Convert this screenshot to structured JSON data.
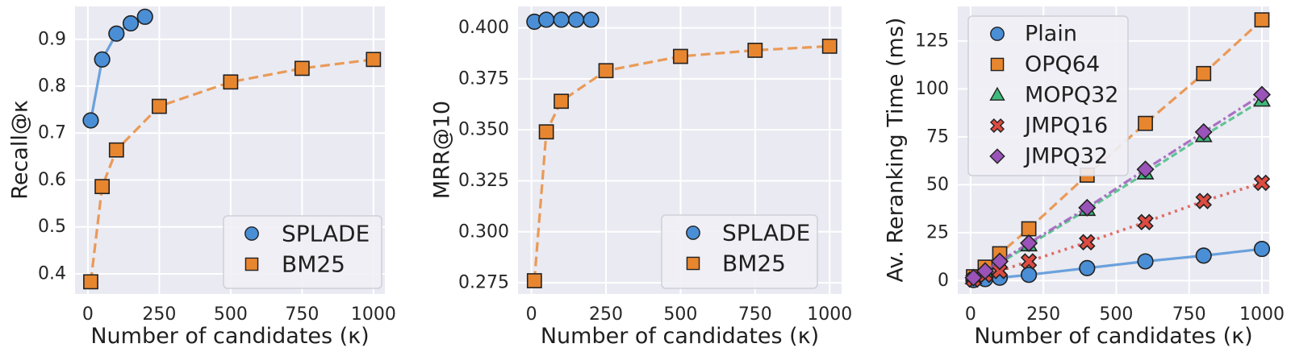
{
  "figure": {
    "background": "#ffffff",
    "plot_background": "#eaeaf2",
    "grid_color": "#ffffff",
    "text_color": "#262626",
    "marker_edge_color": "#222222",
    "legend_background": "#f0f0f5",
    "legend_border": "#cfcfda"
  },
  "chart_data": [
    {
      "type": "line",
      "title": "",
      "xlabel": "Number of candidates (κ)",
      "ylabel": "Recall@κ",
      "xlim": [
        -45,
        1040
      ],
      "ylim": [
        0.357,
        0.97
      ],
      "xticks": [
        "0",
        "250",
        "500",
        "750",
        "1000"
      ],
      "yticks": [
        "0.4",
        "0.5",
        "0.6",
        "0.7",
        "0.8",
        "0.9"
      ],
      "grid": true,
      "legend_position": "lower-right",
      "series": [
        {
          "name": "SPLADE",
          "marker": "circle",
          "line": "solid",
          "color": "#4a8fd6",
          "x": [
            10,
            50,
            100,
            150,
            200
          ],
          "y": [
            0.727,
            0.857,
            0.912,
            0.934,
            0.948
          ]
        },
        {
          "name": "BM25",
          "marker": "square",
          "line": "dashed",
          "color": "#e8862f",
          "x": [
            10,
            50,
            100,
            250,
            500,
            750,
            1000
          ],
          "y": [
            0.383,
            0.586,
            0.664,
            0.757,
            0.809,
            0.838,
            0.857
          ]
        }
      ]
    },
    {
      "type": "line",
      "title": "",
      "xlabel": "Number of candidates (κ)",
      "ylabel": "MRR@10",
      "xlim": [
        -45,
        1040
      ],
      "ylim": [
        0.2695,
        0.4105
      ],
      "xticks": [
        "0",
        "250",
        "500",
        "750",
        "1000"
      ],
      "yticks": [
        "0.275",
        "0.300",
        "0.325",
        "0.350",
        "0.375",
        "0.400"
      ],
      "grid": true,
      "legend_position": "lower-right",
      "series": [
        {
          "name": "SPLADE",
          "marker": "circle",
          "line": "solid",
          "color": "#4a8fd6",
          "x": [
            10,
            50,
            100,
            150,
            200
          ],
          "y": [
            0.403,
            0.404,
            0.404,
            0.404,
            0.404
          ]
        },
        {
          "name": "BM25",
          "marker": "square",
          "line": "dashed",
          "color": "#e8862f",
          "x": [
            10,
            50,
            100,
            250,
            500,
            750,
            1000
          ],
          "y": [
            0.276,
            0.349,
            0.364,
            0.379,
            0.386,
            0.389,
            0.391
          ]
        }
      ]
    },
    {
      "type": "line",
      "title": "",
      "xlabel": "Number of candidates (κ)",
      "ylabel": "Av. Reranking Time (ms)",
      "xlim": [
        -44,
        1025
      ],
      "ylim": [
        -7,
        143
      ],
      "xticks": [
        "0",
        "250",
        "500",
        "750",
        "1000"
      ],
      "yticks": [
        "0",
        "25",
        "50",
        "75",
        "100",
        "125"
      ],
      "grid": true,
      "legend_position": "upper-left",
      "series": [
        {
          "name": "Plain",
          "marker": "circle",
          "line": "solid",
          "color": "#4a8fd6",
          "x": [
            10,
            50,
            100,
            200,
            400,
            600,
            800,
            1000
          ],
          "y": [
            0.3,
            0.8,
            1.5,
            3,
            6.5,
            10,
            13,
            16.5
          ]
        },
        {
          "name": "OPQ64",
          "marker": "square",
          "line": "dashed",
          "color": "#e8862f",
          "x": [
            10,
            50,
            100,
            200,
            400,
            600,
            800,
            1000
          ],
          "y": [
            2,
            7,
            14,
            27,
            55,
            82,
            108,
            136
          ]
        },
        {
          "name": "MOPQ32",
          "marker": "triangle",
          "line": "dashed-short",
          "color": "#3eba7c",
          "x": [
            10,
            50,
            100,
            200,
            400,
            600,
            800,
            1000
          ],
          "y": [
            1.3,
            4.5,
            9,
            18.5,
            37,
            56,
            75.5,
            94
          ]
        },
        {
          "name": "JMPQ16",
          "marker": "x",
          "line": "dotted",
          "color": "#dd4b41",
          "x": [
            10,
            50,
            100,
            200,
            400,
            600,
            800,
            1000
          ],
          "y": [
            0.5,
            3,
            5,
            10,
            20,
            30.5,
            41.5,
            51
          ]
        },
        {
          "name": "JMPQ32",
          "marker": "diamond",
          "line": "dashdot",
          "color": "#9a53b8",
          "x": [
            10,
            50,
            100,
            200,
            400,
            600,
            800,
            1000
          ],
          "y": [
            1.5,
            5,
            10,
            19.5,
            38,
            58,
            77.5,
            97
          ]
        }
      ]
    }
  ]
}
